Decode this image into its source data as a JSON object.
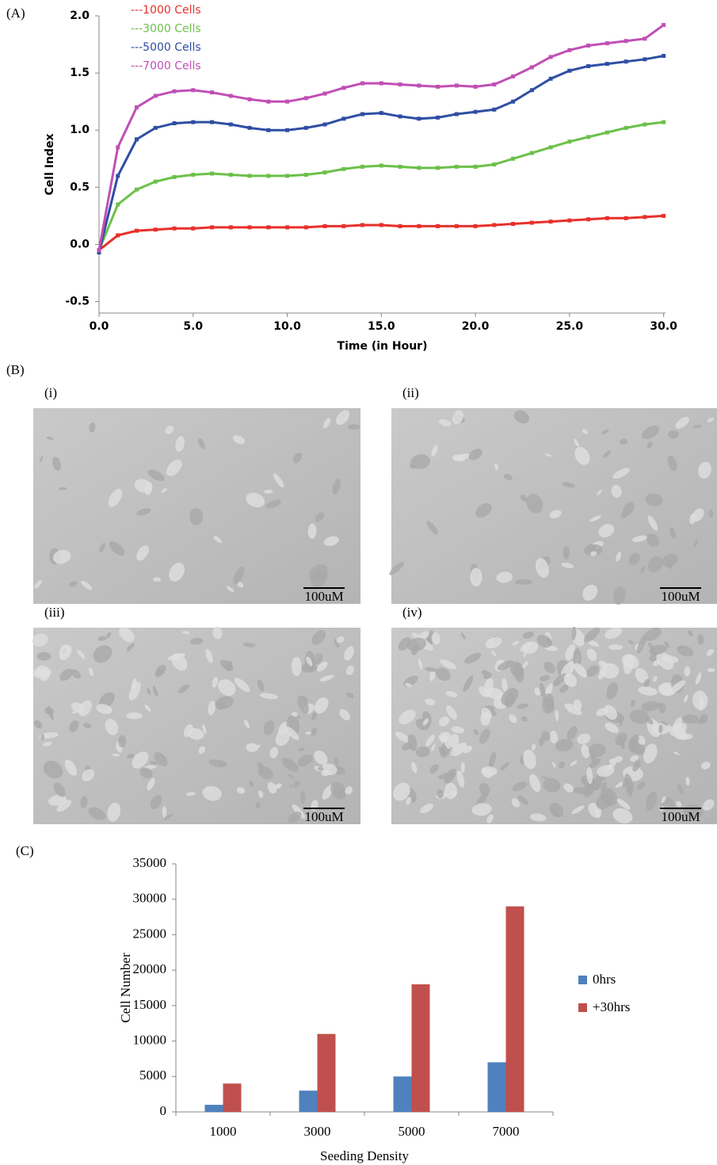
{
  "figure": {
    "panel_labels": [
      "(A)",
      "(B)",
      "(C)"
    ],
    "images": [
      {
        "label": "(i)",
        "scale": "100uM"
      },
      {
        "label": "(ii)",
        "scale": "100uM"
      },
      {
        "label": "(iii)",
        "scale": "100uM"
      },
      {
        "label": "(iv)",
        "scale": "100uM"
      }
    ]
  },
  "chart_data": [
    {
      "type": "line",
      "ylabel": "Cell Index",
      "xlabel": "Time (in Hour)",
      "legend": "top-left",
      "x": [
        0,
        1,
        2,
        3,
        4,
        5,
        6,
        7,
        8,
        9,
        10,
        11,
        12,
        13,
        14,
        15,
        16,
        17,
        18,
        19,
        20,
        21,
        22,
        23,
        24,
        25,
        26,
        27,
        28,
        29,
        30
      ],
      "series": [
        {
          "name": "---1000 Cells",
          "color": "#e8302c",
          "values": [
            -0.05,
            0.08,
            0.12,
            0.13,
            0.14,
            0.14,
            0.15,
            0.15,
            0.15,
            0.15,
            0.15,
            0.15,
            0.16,
            0.16,
            0.17,
            0.17,
            0.16,
            0.16,
            0.16,
            0.16,
            0.16,
            0.17,
            0.18,
            0.19,
            0.2,
            0.21,
            0.22,
            0.23,
            0.23,
            0.24,
            0.25
          ]
        },
        {
          "name": "---3000 Cells",
          "color": "#6cc04a",
          "values": [
            -0.05,
            0.35,
            0.48,
            0.55,
            0.59,
            0.61,
            0.62,
            0.61,
            0.6,
            0.6,
            0.6,
            0.61,
            0.63,
            0.66,
            0.68,
            0.69,
            0.68,
            0.67,
            0.67,
            0.68,
            0.68,
            0.7,
            0.75,
            0.8,
            0.85,
            0.9,
            0.94,
            0.98,
            1.02,
            1.05,
            1.07
          ]
        },
        {
          "name": "---5000 Cells",
          "color": "#2f4ea3",
          "values": [
            -0.07,
            0.6,
            0.92,
            1.02,
            1.06,
            1.07,
            1.07,
            1.05,
            1.02,
            1.0,
            1.0,
            1.02,
            1.05,
            1.1,
            1.14,
            1.15,
            1.12,
            1.1,
            1.11,
            1.14,
            1.16,
            1.18,
            1.25,
            1.35,
            1.45,
            1.52,
            1.56,
            1.58,
            1.6,
            1.62,
            1.65
          ]
        },
        {
          "name": "---7000 Cells",
          "color": "#c04fb5",
          "values": [
            -0.05,
            0.85,
            1.2,
            1.3,
            1.34,
            1.35,
            1.33,
            1.3,
            1.27,
            1.25,
            1.25,
            1.28,
            1.32,
            1.37,
            1.41,
            1.41,
            1.4,
            1.39,
            1.38,
            1.39,
            1.38,
            1.4,
            1.47,
            1.55,
            1.64,
            1.7,
            1.74,
            1.76,
            1.78,
            1.8,
            1.92
          ]
        }
      ],
      "xlim": [
        0,
        30.1
      ],
      "xticks": [
        {
          "value": 0,
          "label": "0.0"
        },
        {
          "value": 5,
          "label": "5.0"
        },
        {
          "value": 10,
          "label": "10.0"
        },
        {
          "value": 15,
          "label": "15.0"
        },
        {
          "value": 20,
          "label": "20.0"
        },
        {
          "value": 25,
          "label": "25.0"
        },
        {
          "value": 30,
          "label": "30.0"
        }
      ],
      "ylim": [
        -0.6,
        2.0
      ],
      "yticks": [
        -0.5,
        {
          "value": 0,
          "label": "0.0"
        },
        0.5,
        {
          "value": 1,
          "label": "1.0"
        },
        1.5,
        {
          "value": 2,
          "label": "2.0"
        }
      ]
    },
    {
      "type": "bar",
      "ylabel": "Cell Number",
      "xlabel": "Seeding Density",
      "legend": "right",
      "categories": [
        "1000",
        "3000",
        "5000",
        "7000"
      ],
      "series": [
        {
          "name": "0hrs",
          "color": "#4f81bd",
          "values": [
            1000,
            3000,
            5000,
            7000
          ]
        },
        {
          "name": "+30hrs",
          "color": "#c0504d",
          "values": [
            4000,
            11000,
            18000,
            29000
          ]
        }
      ],
      "ylim": [
        0,
        35000
      ],
      "yticks": [
        0,
        5000,
        10000,
        15000,
        20000,
        25000,
        30000,
        35000
      ]
    }
  ]
}
